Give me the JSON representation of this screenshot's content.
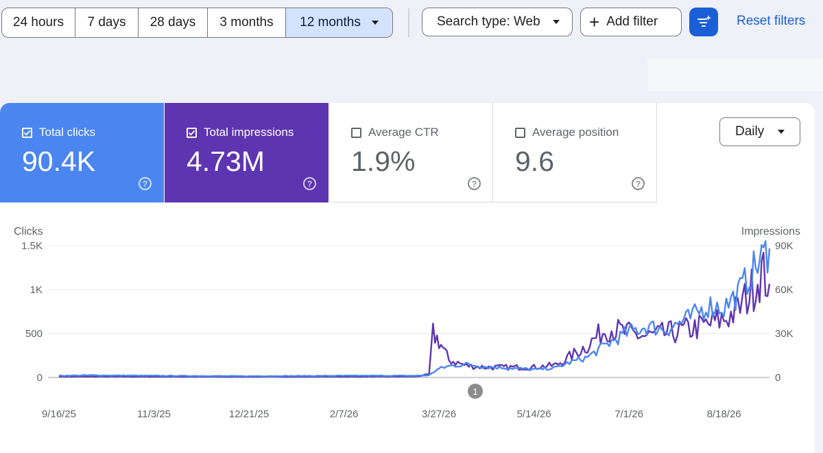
{
  "date_range": {
    "options": [
      "24 hours",
      "7 days",
      "28 days",
      "3 months",
      "12 months"
    ],
    "selected": "12 months"
  },
  "filters": {
    "search_type": "Search type: Web",
    "add_filter": "Add filter",
    "reset": "Reset filters"
  },
  "metrics": [
    {
      "label": "Total clicks",
      "value": "90.4K",
      "checked": true,
      "color": "#4b86f0"
    },
    {
      "label": "Total impressions",
      "value": "4.73M",
      "checked": true,
      "color": "#5e35b1"
    },
    {
      "label": "Average CTR",
      "value": "1.9%",
      "checked": false
    },
    {
      "label": "Average position",
      "value": "9.6",
      "checked": false
    }
  ],
  "granularity": "Daily",
  "annotation_marker": "1",
  "chart_data": {
    "type": "line",
    "ylabel_left": "Clicks",
    "ylabel_right": "Impressions",
    "y_left_ticks": [
      "0",
      "500",
      "1K",
      "1.5K"
    ],
    "y_left_range": [
      0,
      1500
    ],
    "y_right_ticks": [
      "0",
      "30K",
      "60K",
      "90K"
    ],
    "y_right_range": [
      0,
      90000
    ],
    "x_tick_labels": [
      "9/16/25",
      "11/3/25",
      "12/21/25",
      "2/7/26",
      "3/27/26",
      "5/14/26",
      "7/1/26",
      "8/18/26"
    ],
    "x_dates": [
      "2025-09-16",
      "2025-10-01",
      "2025-11-03",
      "2025-12-21",
      "2026-02-07",
      "2026-03-15",
      "2026-03-22",
      "2026-03-24",
      "2026-03-27",
      "2026-04-01",
      "2026-04-10",
      "2026-04-20",
      "2026-05-01",
      "2026-05-14",
      "2026-05-25",
      "2026-06-01",
      "2026-06-10",
      "2026-06-20",
      "2026-07-01",
      "2026-07-10",
      "2026-07-20",
      "2026-08-01",
      "2026-08-10",
      "2026-08-18",
      "2026-08-25",
      "2026-09-01",
      "2026-09-06",
      "2026-09-10"
    ],
    "series": [
      {
        "name": "Clicks",
        "color": "#4b86f0",
        "values": [
          20,
          25,
          20,
          15,
          20,
          20,
          25,
          60,
          100,
          130,
          150,
          120,
          110,
          90,
          110,
          170,
          230,
          380,
          520,
          580,
          550,
          680,
          820,
          800,
          950,
          1200,
          1350,
          1470
        ]
      },
      {
        "name": "Impressions",
        "color": "#5e35b1",
        "values": [
          600,
          700,
          600,
          500,
          600,
          700,
          2000,
          30000,
          25000,
          12000,
          8000,
          7000,
          7000,
          7000,
          8500,
          14000,
          22000,
          34000,
          30000,
          28000,
          30000,
          33000,
          36000,
          40000,
          46000,
          60000,
          72000,
          64000
        ]
      }
    ]
  }
}
